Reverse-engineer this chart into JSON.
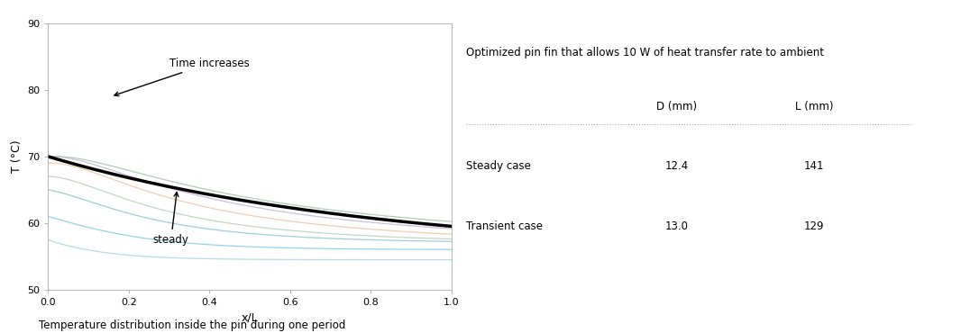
{
  "xlabel": "x/L",
  "ylabel": "T (°C)",
  "caption": "Temperature distribution inside the pin during one period",
  "ylim": [
    50,
    90
  ],
  "xlim": [
    0,
    1.0
  ],
  "yticks": [
    50,
    60,
    70,
    80,
    90
  ],
  "xticks": [
    0.0,
    0.2,
    0.4,
    0.6,
    0.8,
    1.0
  ],
  "steady_color": "#000000",
  "transient_colors": [
    "#add8e6",
    "#87ceeb",
    "#90c8d8",
    "#b8d4b8",
    "#f0c8a8",
    "#c8b8d8",
    "#a8c8a8"
  ],
  "table_title": "Optimized pin fin that allows 10 W of heat transfer rate to ambient",
  "col_headers": [
    "",
    "D (mm)",
    "L (mm)"
  ],
  "rows": [
    [
      "Steady case",
      "12.4",
      "141"
    ],
    [
      "Transient case",
      "13.0",
      "129"
    ]
  ],
  "annotation_time_increases": "Time increases",
  "annotation_steady": "steady",
  "background_color": "#ffffff"
}
